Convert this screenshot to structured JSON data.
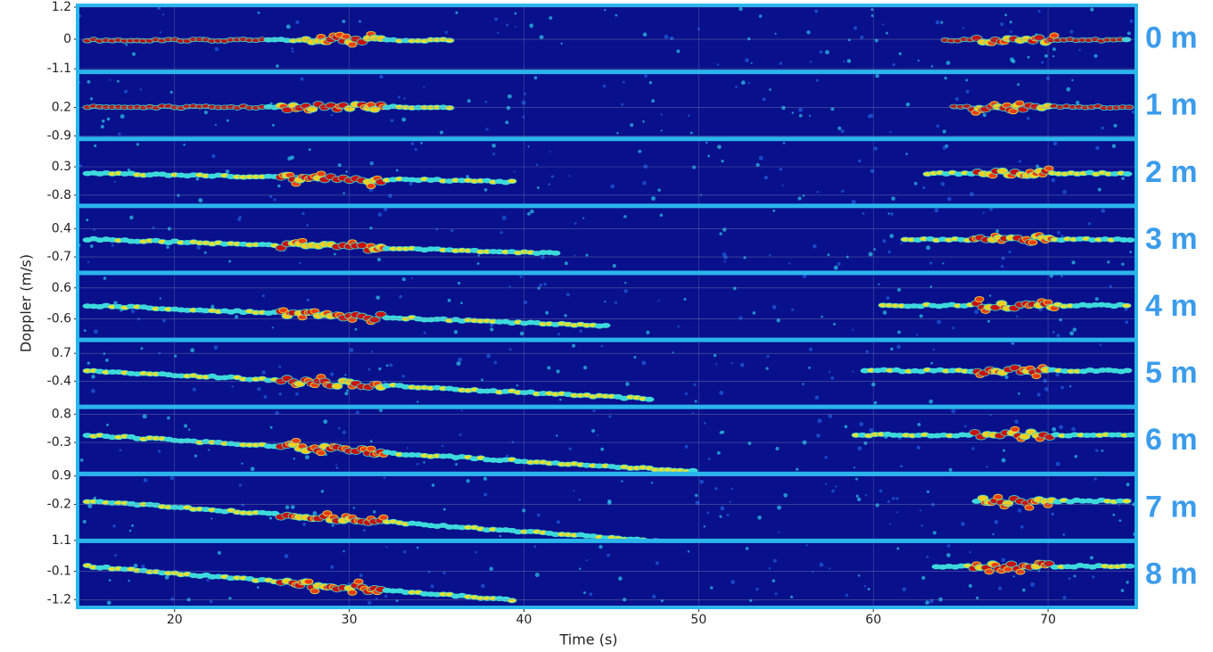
{
  "chart_data": {
    "type": "spectrogram",
    "xlabel": "Time (s)",
    "ylabel": "Doppler (m/s)",
    "xlim": [
      14.5,
      75
    ],
    "xticks": [
      20,
      30,
      40,
      50,
      60,
      70
    ],
    "grid": true,
    "border_color": "#2bb5ec",
    "background_color": "#08108c",
    "label_color": "#3c9cec",
    "panels": [
      {
        "label": "0 m",
        "ylim": [
          -1.2,
          1.3
        ],
        "yticks": [
          1.2,
          0.0,
          -1.1
        ]
      },
      {
        "label": "1 m",
        "ylim": [
          -1.0,
          1.6
        ],
        "yticks": [
          0.2,
          -0.9
        ]
      },
      {
        "label": "2 m",
        "ylim": [
          -1.2,
          1.4
        ],
        "yticks": [
          0.3,
          -0.8
        ]
      },
      {
        "label": "3 m",
        "ylim": [
          -1.3,
          1.3
        ],
        "yticks": [
          0.4,
          -0.7
        ]
      },
      {
        "label": "4 m",
        "ylim": [
          -1.4,
          1.2
        ],
        "yticks": [
          0.6,
          -0.6
        ]
      },
      {
        "label": "5 m",
        "ylim": [
          -1.4,
          1.25
        ],
        "yticks": [
          0.7,
          -0.4
        ]
      },
      {
        "label": "6 m",
        "ylim": [
          -1.5,
          1.1
        ],
        "yticks": [
          0.8,
          -0.3
        ]
      },
      {
        "label": "7 m",
        "ylim": [
          -1.6,
          1.0
        ],
        "yticks": [
          0.9,
          -0.2
        ]
      },
      {
        "label": "8 m",
        "ylim": [
          -1.5,
          1.1
        ],
        "yticks": [
          1.1,
          -0.1,
          -1.2
        ]
      }
    ]
  }
}
